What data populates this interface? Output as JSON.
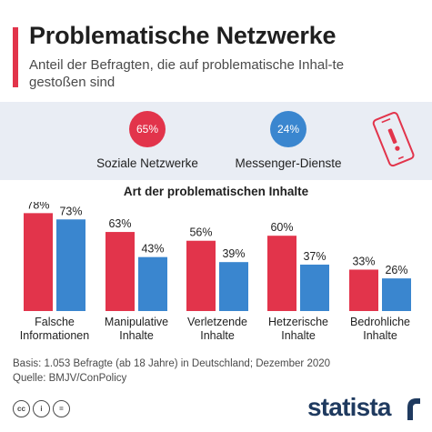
{
  "header": {
    "title": "Problematische Netzwerke",
    "subtitle": "Anteil der Befragten, die auf problematische Inhal-te gestoßen sind"
  },
  "summary": {
    "items": [
      {
        "value": "65%",
        "label": "Soziale Netzwerke",
        "color": "#e2344b"
      },
      {
        "value": "24%",
        "label": "Messenger-Dienste",
        "color": "#3a86cf"
      }
    ],
    "icon": "smartphone-warning-icon"
  },
  "chart_data": {
    "type": "bar",
    "title": "Art der problematischen Inhalte",
    "categories": [
      [
        "Falsche",
        "Informationen"
      ],
      [
        "Manipulative",
        "Inhalte"
      ],
      [
        "Verletzende",
        "Inhalte"
      ],
      [
        "Hetzerische",
        "Inhalte"
      ],
      [
        "Bedrohliche",
        "Inhalte"
      ]
    ],
    "series": [
      {
        "name": "Soziale Netzwerke",
        "values": [
          78,
          63,
          56,
          60,
          33
        ],
        "color": "#e2344b"
      },
      {
        "name": "Messenger-Dienste",
        "values": [
          73,
          43,
          39,
          37,
          26
        ],
        "color": "#3a86cf"
      }
    ],
    "value_suffix": "%",
    "ylim": [
      0,
      100
    ],
    "grid": false,
    "legend": "none"
  },
  "footer": {
    "basis": "Basis: 1.053 Befragte (ab 18 Jahre) in Deutschland; Dezember 2020",
    "source": "Quelle: BMJV/ConPolicy",
    "license_icons": [
      "cc-icon",
      "attribution-icon",
      "equals-icon"
    ],
    "license_glyphs": [
      "cc",
      "i",
      "="
    ],
    "brand": "statista"
  }
}
